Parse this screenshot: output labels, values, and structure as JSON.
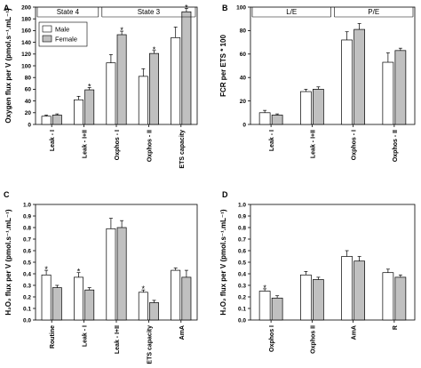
{
  "colors": {
    "male": "#ffffff",
    "female": "#c0c0c0",
    "stroke": "#000000"
  },
  "legend": {
    "male": "Male",
    "female": "Female"
  },
  "chart_data": [
    {
      "panel": "A",
      "type": "bar",
      "ylabel": "Oxygen flux per V (pmol.s⁻¹.mL⁻¹)",
      "ylim": [
        0,
        200
      ],
      "yticks": [
        0,
        20,
        40,
        60,
        80,
        100,
        120,
        140,
        160,
        180,
        200
      ],
      "categories": [
        "Leak - I",
        "Leak - I+II",
        "Oxphos - I",
        "Oxphos - II",
        "ETS capacity"
      ],
      "series": [
        {
          "name": "Male",
          "values": [
            14,
            42,
            105,
            82,
            148
          ],
          "errors": [
            2,
            6,
            14,
            13,
            18
          ]
        },
        {
          "name": "Female",
          "values": [
            16,
            59,
            153,
            121,
            192
          ],
          "errors": [
            2,
            4,
            6,
            5,
            6
          ]
        }
      ],
      "significance": [
        "",
        "*",
        "*",
        "*",
        "*"
      ],
      "groups": [
        {
          "label": "State 4",
          "from": 0,
          "to": 1
        },
        {
          "label": "State 3",
          "from": 2,
          "to": 4
        }
      ],
      "legend_position": "top-left"
    },
    {
      "panel": "B",
      "type": "bar",
      "ylabel": "FCR per ETS * 100",
      "ylim": [
        0,
        100
      ],
      "yticks": [
        0,
        20,
        40,
        60,
        80,
        100
      ],
      "categories": [
        "Leak - I",
        "Leak - I+II",
        "Oxphos - I",
        "Oxphos - II"
      ],
      "series": [
        {
          "name": "Male",
          "values": [
            10,
            28,
            72,
            53
          ],
          "errors": [
            2,
            2,
            7,
            8
          ]
        },
        {
          "name": "Female",
          "values": [
            8,
            30,
            81,
            63
          ],
          "errors": [
            1,
            2,
            5,
            2
          ]
        }
      ],
      "significance": [
        "",
        "",
        "",
        ""
      ],
      "groups": [
        {
          "label": "L/E",
          "from": 0,
          "to": 1
        },
        {
          "label": "P/E",
          "from": 2,
          "to": 3
        }
      ]
    },
    {
      "panel": "C",
      "type": "bar",
      "ylabel": "H₂O₂ flux per V (pmol.s⁻¹.mL⁻¹)",
      "ylim": [
        0,
        1.0
      ],
      "yticks": [
        0.0,
        0.1,
        0.2,
        0.3,
        0.4,
        0.5,
        0.6,
        0.7,
        0.8,
        0.9,
        1.0
      ],
      "categories": [
        "Routine",
        "Leak - I",
        "Leak - I+II",
        "ETS capacity",
        "AmA"
      ],
      "series": [
        {
          "name": "Male",
          "values": [
            0.39,
            0.37,
            0.79,
            0.24,
            0.43
          ],
          "errors": [
            0.04,
            0.04,
            0.09,
            0.02,
            0.02
          ]
        },
        {
          "name": "Female",
          "values": [
            0.28,
            0.26,
            0.8,
            0.15,
            0.37
          ],
          "errors": [
            0.02,
            0.02,
            0.06,
            0.02,
            0.06
          ]
        }
      ],
      "significance": [
        "*",
        "*",
        "",
        "*",
        ""
      ]
    },
    {
      "panel": "D",
      "type": "bar",
      "ylabel": "H₂O₂ flux per V (pmol.s⁻¹.mL⁻¹)",
      "ylim": [
        0,
        1.0
      ],
      "yticks": [
        0.0,
        0.1,
        0.2,
        0.3,
        0.4,
        0.5,
        0.6,
        0.7,
        0.8,
        0.9,
        1.0
      ],
      "categories": [
        "Oxphos I",
        "Oxphos II",
        "AmA",
        "R"
      ],
      "series": [
        {
          "name": "Male",
          "values": [
            0.25,
            0.39,
            0.55,
            0.41
          ],
          "errors": [
            0.02,
            0.03,
            0.05,
            0.03
          ]
        },
        {
          "name": "Female",
          "values": [
            0.19,
            0.35,
            0.51,
            0.37
          ],
          "errors": [
            0.02,
            0.02,
            0.04,
            0.02
          ]
        }
      ],
      "significance": [
        "*",
        "",
        "",
        ""
      ]
    }
  ]
}
